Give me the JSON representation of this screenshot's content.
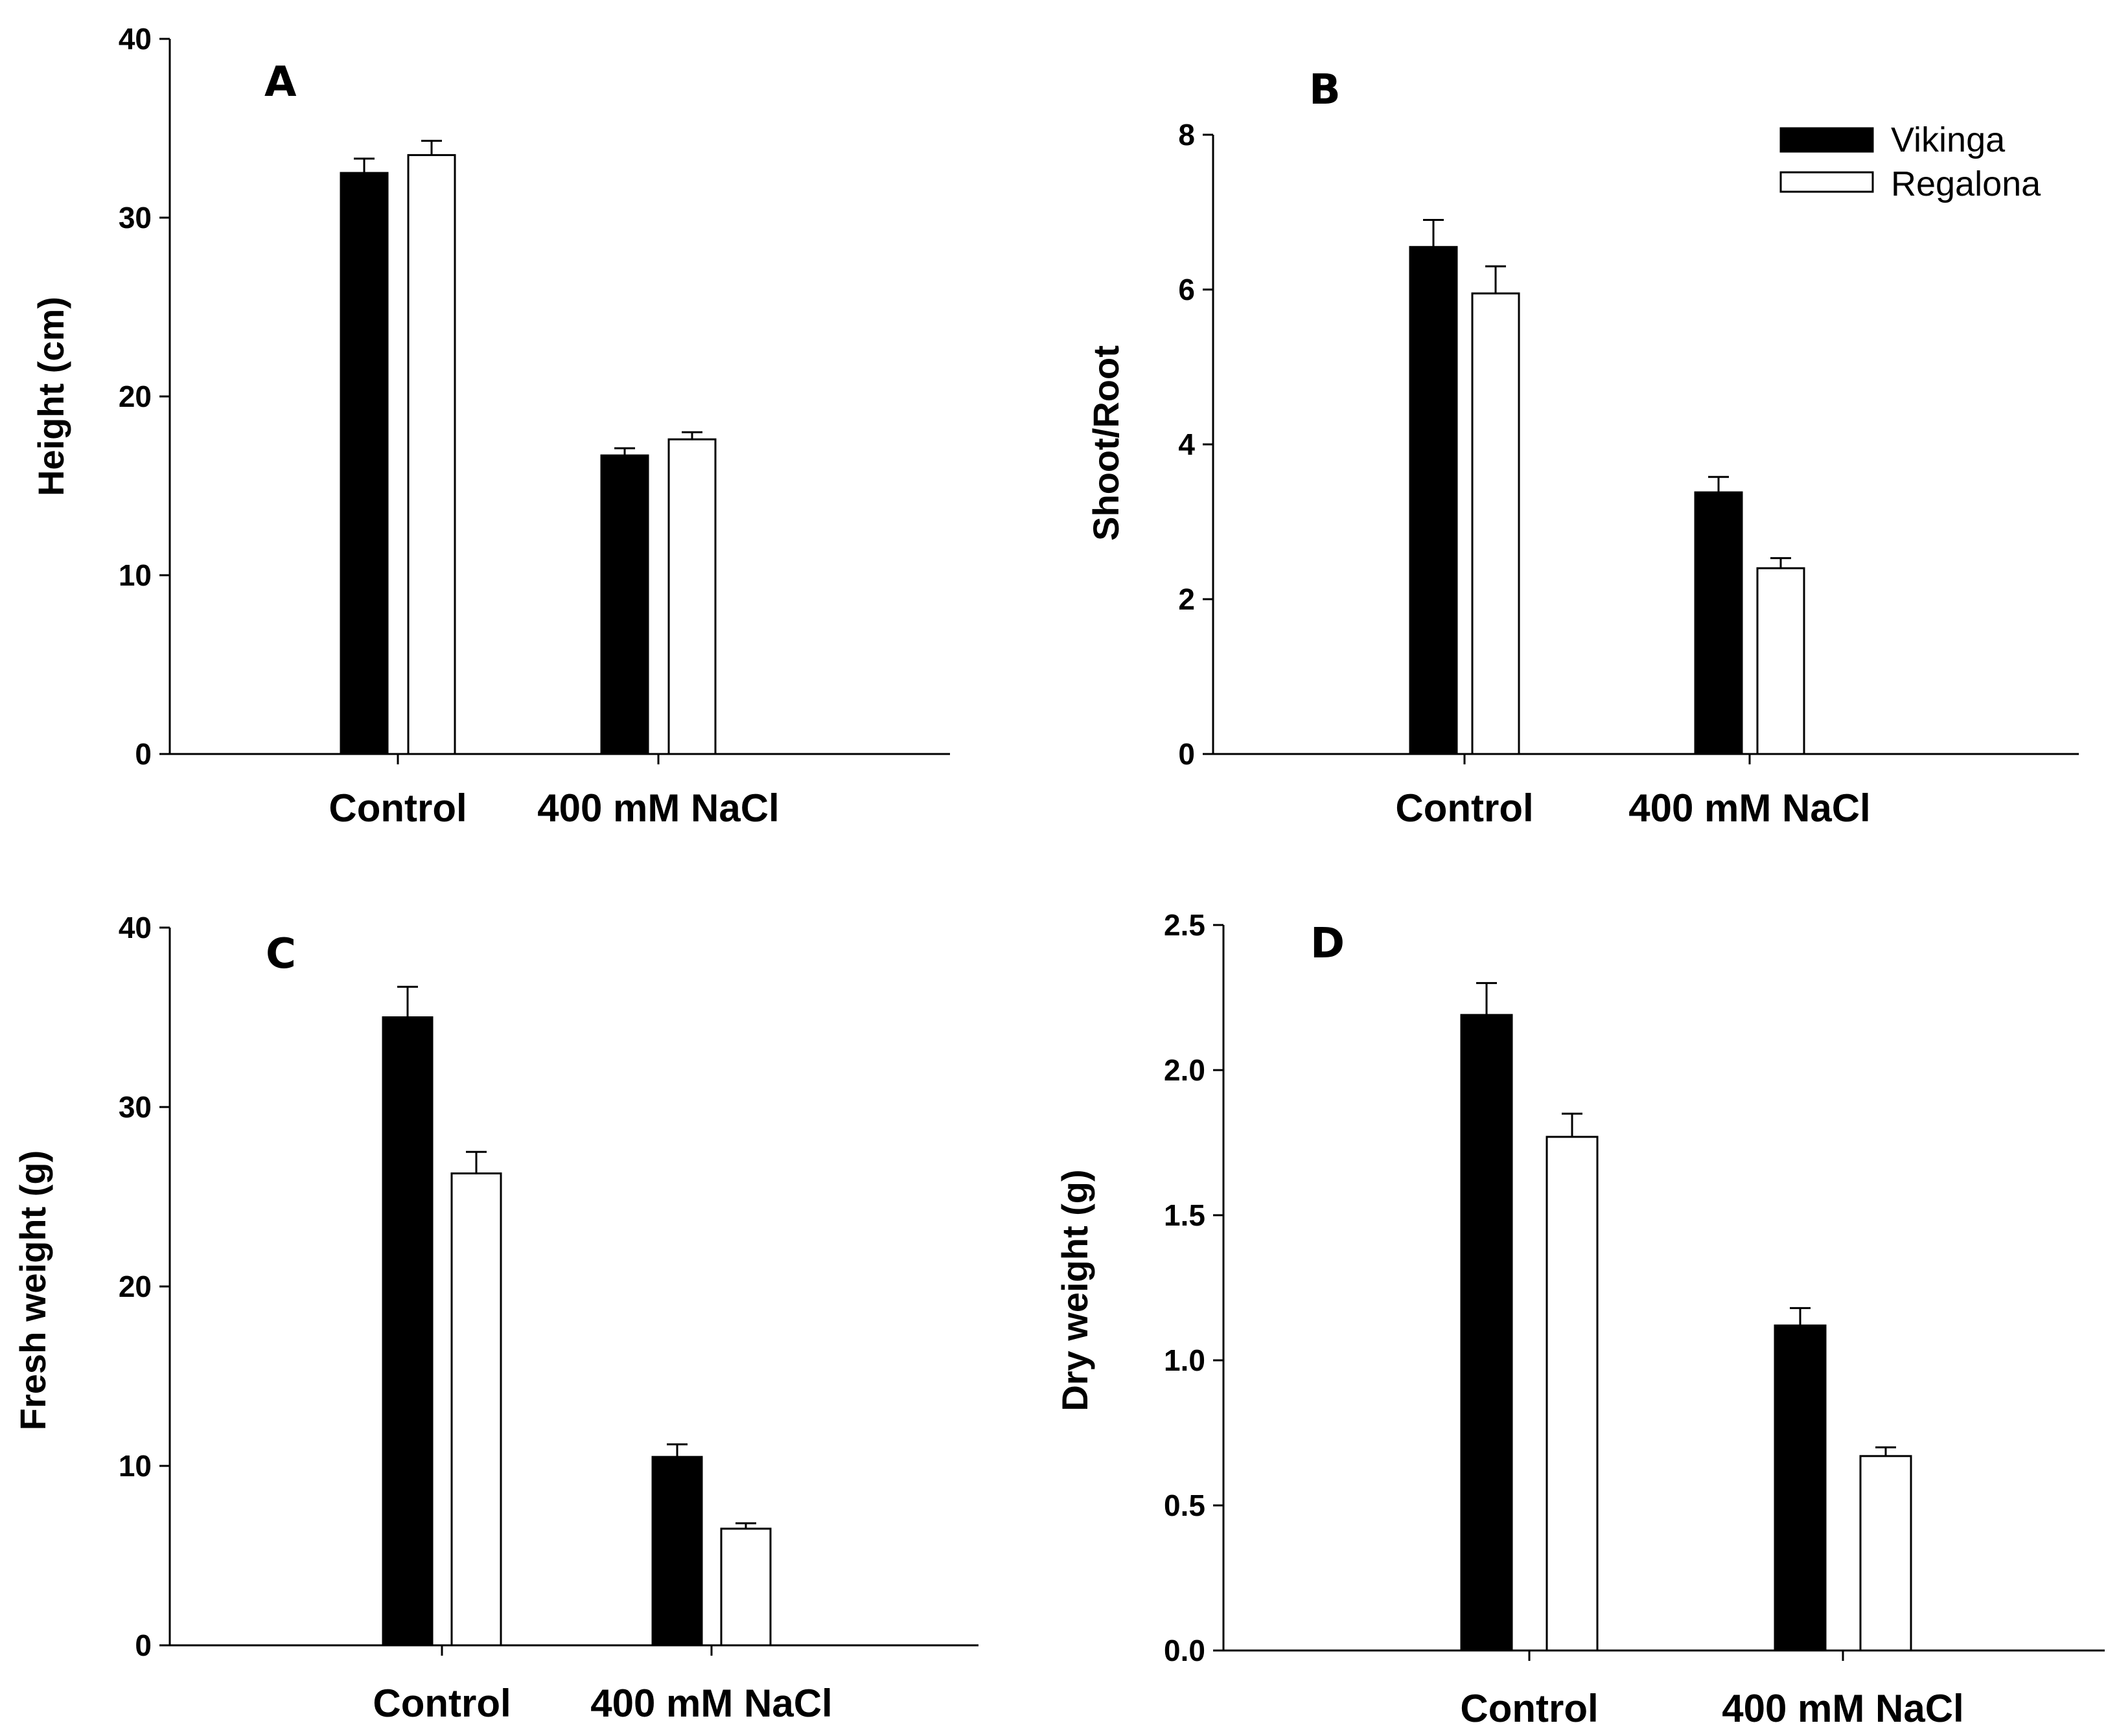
{
  "colors": {
    "vikinga": "#000000",
    "regalona": "#ffffff",
    "outline": "#000000"
  },
  "legend": {
    "items": [
      {
        "label": "Vikinga",
        "color": "#000000"
      },
      {
        "label": "Regalona",
        "color": "#ffffff"
      }
    ]
  },
  "chart_data": [
    {
      "type": "bar",
      "panel": "A",
      "ylabel": "Height (cm)",
      "categories": [
        "Control",
        "400 mM NaCl"
      ],
      "ylim": [
        0,
        40
      ],
      "yticks": [
        "0",
        "10",
        "20",
        "30",
        "40"
      ],
      "series": [
        {
          "name": "Vikinga",
          "values": [
            32.5,
            16.7
          ],
          "errors": [
            0.8,
            0.4
          ]
        },
        {
          "name": "Regalona",
          "values": [
            33.5,
            17.6
          ],
          "errors": [
            0.8,
            0.4
          ]
        }
      ]
    },
    {
      "type": "bar",
      "panel": "B",
      "ylabel": "Shoot/Root",
      "categories": [
        "Control",
        "400 mM NaCl"
      ],
      "ylim": [
        0,
        8
      ],
      "yticks": [
        "0",
        "2",
        "4",
        "6",
        "8"
      ],
      "series": [
        {
          "name": "Vikinga",
          "values": [
            6.55,
            3.38
          ],
          "errors": [
            0.35,
            0.2
          ]
        },
        {
          "name": "Regalona",
          "values": [
            5.95,
            2.4
          ],
          "errors": [
            0.35,
            0.13
          ]
        }
      ]
    },
    {
      "type": "bar",
      "panel": "C",
      "ylabel": "Fresh weight (g)",
      "categories": [
        "Control",
        "400 mM NaCl"
      ],
      "ylim": [
        0,
        40
      ],
      "yticks": [
        "0",
        "10",
        "20",
        "30",
        "40"
      ],
      "series": [
        {
          "name": "Vikinga",
          "values": [
            35.0,
            10.5
          ],
          "errors": [
            1.7,
            0.7
          ]
        },
        {
          "name": "Regalona",
          "values": [
            26.3,
            6.5
          ],
          "errors": [
            1.2,
            0.3
          ]
        }
      ]
    },
    {
      "type": "bar",
      "panel": "D",
      "ylabel": "Dry weight (g)",
      "categories": [
        "Control",
        "400 mM NaCl"
      ],
      "ylim": [
        0,
        2.5
      ],
      "yticks": [
        "0.0",
        "0.5",
        "1.0",
        "1.5",
        "2.0",
        "2.5"
      ],
      "series": [
        {
          "name": "Vikinga",
          "values": [
            2.19,
            1.12
          ],
          "errors": [
            0.11,
            0.06
          ]
        },
        {
          "name": "Regalona",
          "values": [
            1.77,
            0.67
          ],
          "errors": [
            0.08,
            0.03
          ]
        }
      ]
    }
  ]
}
